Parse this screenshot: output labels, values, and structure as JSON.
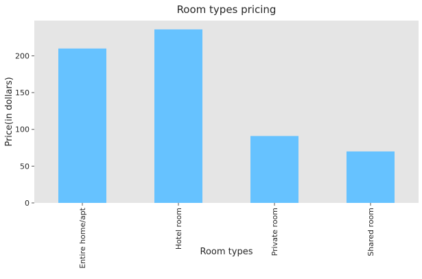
{
  "chart_data": {
    "type": "bar",
    "title": "Room types pricing",
    "xlabel": "Room types",
    "ylabel": "Price(in dollars)",
    "categories": [
      "Entire home/apt",
      "Hotel room",
      "Private room",
      "Shared room"
    ],
    "values": [
      210,
      236,
      91,
      70
    ],
    "ylim": [
      0,
      248
    ],
    "yticks": [
      0,
      50,
      100,
      150,
      200
    ],
    "grid": false,
    "legend": "none",
    "bar_color": "#66c2ff",
    "plot_background": "#e5e5e5"
  }
}
